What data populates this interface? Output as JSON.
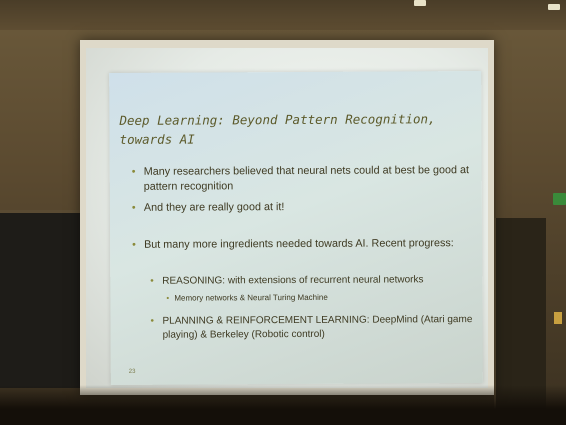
{
  "slide": {
    "title_line1": "Deep Learning: Beyond Pattern Recognition,",
    "title_line2": "towards AI",
    "bullets": [
      {
        "text": "Many researchers believed that neural nets could at best be good at pattern recognition"
      },
      {
        "text": "And they are really good at it!"
      },
      {
        "text": "But many more ingredients needed towards AI. Recent progress:"
      },
      {
        "text": "REASONING: with extensions of recurrent neural networks"
      },
      {
        "text": "Memory networks & Neural Turing Machine"
      },
      {
        "text": "PLANNING & REINFORCEMENT LEARNING: DeepMind (Atari game playing) & Berkeley (Robotic control)"
      }
    ],
    "number": "23"
  },
  "colors": {
    "wall": "#5b4a30",
    "slide_bg": "#d9e6e2",
    "title": "#5c5a2a",
    "text": "#3e3a22",
    "bullet_dot": "#8a8a3a",
    "exit_sign": "#3a8a3a"
  }
}
